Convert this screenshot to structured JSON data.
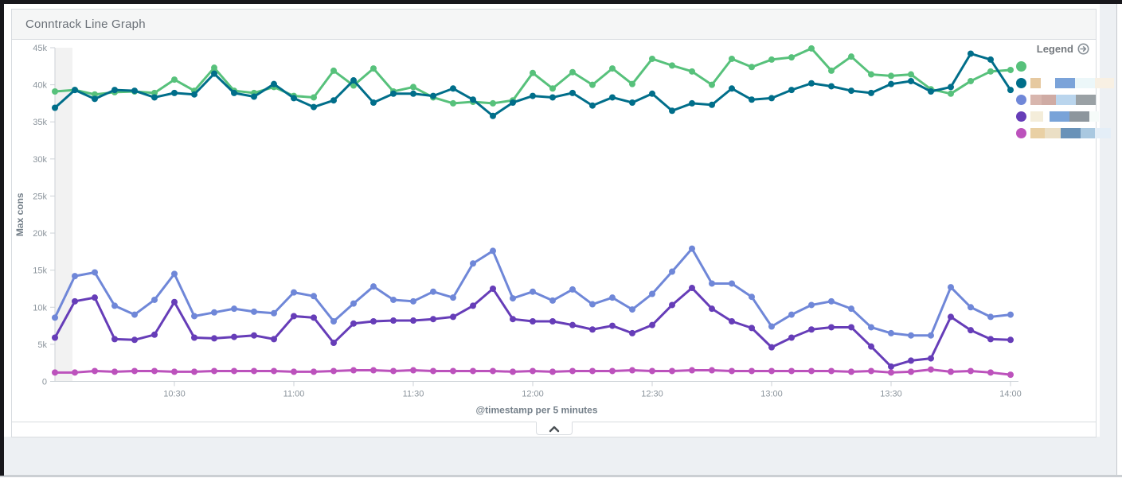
{
  "panel": {
    "title": "Conntrack Line Graph"
  },
  "legend": {
    "label": "Legend",
    "toggle_icon": "circle-arrow-right-icon",
    "items": [
      {
        "name": "series-1",
        "color": "#57c17b",
        "label_redacted": true,
        "pixels": []
      },
      {
        "name": "series-2",
        "color": "#006e8a",
        "label_redacted": true,
        "pixels": [
          {
            "c": "#e6c9a0",
            "w": 13
          },
          {
            "c": "",
            "w": 18
          },
          {
            "c": "#7ba3d9",
            "w": 25
          },
          {
            "c": "#ecf7f9",
            "w": 25
          },
          {
            "c": "#f8f0e3",
            "w": 24
          }
        ]
      },
      {
        "name": "series-3",
        "color": "#6f87d8",
        "label_redacted": true,
        "pixels": [
          {
            "c": "#d8b6ae",
            "w": 14
          },
          {
            "c": "#cfaba4",
            "w": 18
          },
          {
            "c": "#bad5ed",
            "w": 25
          },
          {
            "c": "#9aa1a5",
            "w": 25
          }
        ]
      },
      {
        "name": "series-4",
        "color": "#663db8",
        "label_redacted": true,
        "pixels": [
          {
            "c": "#f4edda",
            "w": 16
          },
          {
            "c": "",
            "w": 8
          },
          {
            "c": "#79a3d8",
            "w": 25
          },
          {
            "c": "#8d969d",
            "w": 25
          },
          {
            "c": "#f6fbf9",
            "w": 12
          }
        ]
      },
      {
        "name": "series-5",
        "color": "#bc52bc",
        "label_redacted": true,
        "pixels": [
          {
            "c": "#e9d0a4",
            "w": 18
          },
          {
            "c": "#ebdfc5",
            "w": 20
          },
          {
            "c": "#6992b8",
            "w": 25
          },
          {
            "c": "#a9c8e0",
            "w": 18
          },
          {
            "c": "#e4eef7",
            "w": 20
          }
        ]
      }
    ]
  },
  "collapse_button": {
    "icon": "chevron-up-icon"
  },
  "chart_data": {
    "type": "line",
    "title": "Conntrack Line Graph",
    "xlabel": "@timestamp per 5 minutes",
    "ylabel": "Max cons",
    "x_start": "10:00",
    "x_end": "14:00",
    "x_interval_minutes": 5,
    "x_ticks": [
      "10:30",
      "11:00",
      "11:30",
      "12:00",
      "12:30",
      "13:00",
      "13:30",
      "14:00"
    ],
    "y_ticks": [
      "0",
      "5k",
      "10k",
      "15k",
      "20k",
      "25k",
      "30k",
      "35k",
      "40k",
      "45k"
    ],
    "ylim": [
      0,
      45000
    ],
    "grid": false,
    "legend_position": "right",
    "partial_bucket_band": {
      "from": "10:00",
      "to": "10:05"
    },
    "series": [
      {
        "name": "series-1-green",
        "color": "#57c17b",
        "values": [
          39100,
          39300,
          38700,
          39000,
          39100,
          38900,
          40700,
          39200,
          42300,
          39200,
          38900,
          39700,
          38500,
          38300,
          41900,
          39900,
          42200,
          39100,
          39700,
          38300,
          37500,
          37700,
          37500,
          37900,
          41600,
          39500,
          41700,
          40000,
          42200,
          40100,
          43500,
          42600,
          41800,
          40000,
          43500,
          42400,
          43400,
          43700,
          44900,
          41900,
          43800,
          41400,
          41200,
          41400,
          39400,
          38800,
          40500,
          41800,
          42000
        ]
      },
      {
        "name": "series-2-teal",
        "color": "#006e8a",
        "values": [
          36900,
          39300,
          38100,
          39300,
          39200,
          38300,
          38900,
          38700,
          41500,
          38900,
          38400,
          40100,
          38200,
          37000,
          37900,
          40600,
          37600,
          38800,
          38800,
          38500,
          39500,
          38000,
          35800,
          37600,
          38500,
          38300,
          38900,
          37200,
          38300,
          37600,
          38800,
          36500,
          37500,
          37300,
          39500,
          38000,
          38200,
          39300,
          40200,
          39800,
          39200,
          38900,
          40100,
          40500,
          39100,
          39700,
          44200,
          43400,
          39300
        ]
      },
      {
        "name": "series-3-periwinkle",
        "color": "#6f87d8",
        "values": [
          8600,
          14200,
          14700,
          10200,
          9000,
          11000,
          14500,
          8800,
          9300,
          9800,
          9400,
          9200,
          12000,
          11500,
          8100,
          10500,
          12800,
          11000,
          10800,
          12100,
          11300,
          15900,
          17600,
          11200,
          12100,
          10900,
          12400,
          10400,
          11300,
          9700,
          11800,
          14800,
          17900,
          13200,
          13200,
          11400,
          7400,
          9000,
          10300,
          10800,
          9800,
          7300,
          6500,
          6200,
          6200,
          12700,
          10000,
          8700,
          9000
        ]
      },
      {
        "name": "series-4-purple",
        "color": "#663db8",
        "values": [
          5900,
          10800,
          11300,
          5700,
          5600,
          6300,
          10700,
          5900,
          5800,
          6000,
          6200,
          5700,
          8800,
          8600,
          5200,
          7800,
          8100,
          8200,
          8200,
          8400,
          8700,
          10200,
          12500,
          8400,
          8100,
          8100,
          7600,
          7000,
          7500,
          6500,
          7600,
          10300,
          12600,
          9800,
          8100,
          7200,
          4600,
          5900,
          7000,
          7300,
          7300,
          4700,
          2000,
          2800,
          3100,
          8700,
          6900,
          5700,
          5600
        ]
      },
      {
        "name": "series-5-magenta",
        "color": "#bc52bc",
        "values": [
          1200,
          1200,
          1400,
          1300,
          1400,
          1400,
          1300,
          1300,
          1400,
          1400,
          1400,
          1400,
          1300,
          1300,
          1400,
          1500,
          1500,
          1400,
          1500,
          1400,
          1400,
          1400,
          1400,
          1300,
          1400,
          1300,
          1400,
          1400,
          1400,
          1500,
          1400,
          1400,
          1500,
          1500,
          1400,
          1400,
          1400,
          1400,
          1400,
          1400,
          1300,
          1400,
          1200,
          1300,
          1600,
          1300,
          1400,
          1200,
          900
        ]
      }
    ]
  }
}
